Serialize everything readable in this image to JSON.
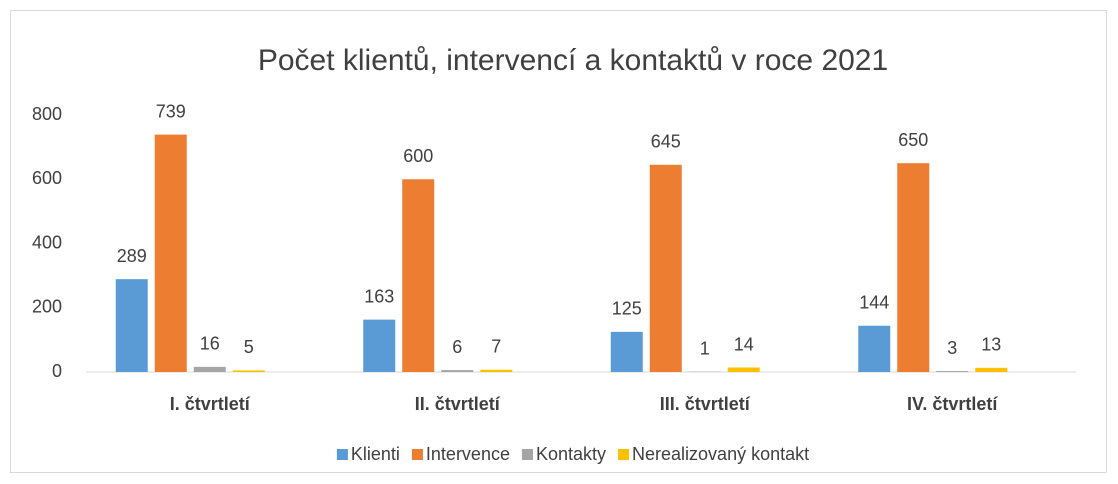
{
  "chart_data": {
    "type": "bar",
    "title": "Počet klientů, intervencí a kontaktů v roce 2021",
    "categories": [
      "I. čtvrtletí",
      "II. čtvrtletí",
      "III. čtvrtletí",
      "IV. čtvrtletí"
    ],
    "series": [
      {
        "name": "Klienti",
        "color": "#5b9bd5",
        "values": [
          289,
          163,
          125,
          144
        ]
      },
      {
        "name": "Intervence",
        "color": "#ed7d31",
        "values": [
          739,
          600,
          645,
          650
        ]
      },
      {
        "name": "Kontakty",
        "color": "#a5a5a5",
        "values": [
          16,
          6,
          1,
          3
        ]
      },
      {
        "name": "Nerealizovaný kontakt",
        "color": "#ffc000",
        "values": [
          5,
          7,
          14,
          13
        ]
      }
    ],
    "ylim": [
      0,
      800
    ],
    "yticks": [
      0,
      200,
      400,
      600,
      800
    ],
    "grid": false,
    "legend": "bottom"
  }
}
